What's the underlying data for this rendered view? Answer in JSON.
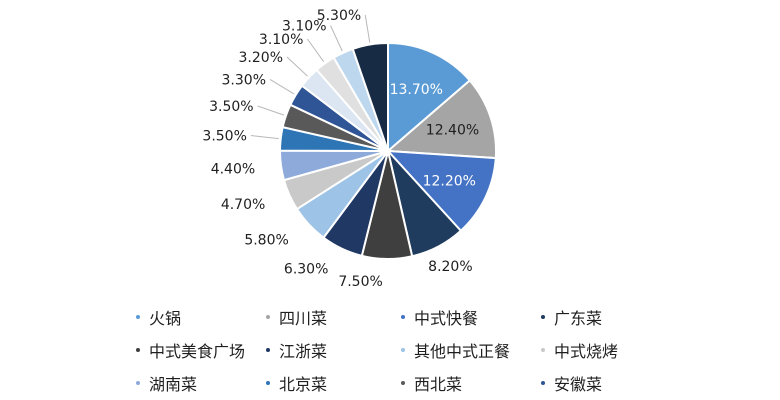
{
  "chart_data": {
    "type": "pie",
    "title": "",
    "legend_position": "bottom",
    "slices": [
      {
        "name": "火锅",
        "value": 13.7,
        "label": "13.70%",
        "color": "#5b9bd5"
      },
      {
        "name": "四川菜",
        "value": 12.4,
        "label": "12.40%",
        "color": "#a5a5a5"
      },
      {
        "name": "中式快餐",
        "value": 12.2,
        "label": "12.20%",
        "color": "#4472c4"
      },
      {
        "name": "广东菜",
        "value": 8.2,
        "label": "8.20%",
        "color": "#1f3b5e"
      },
      {
        "name": "中式美食广场",
        "value": 7.5,
        "label": "7.50%",
        "color": "#3f3f3f"
      },
      {
        "name": "江浙菜",
        "value": 6.3,
        "label": "6.30%",
        "color": "#203864"
      },
      {
        "name": "其他中式正餐",
        "value": 5.8,
        "label": "5.80%",
        "color": "#9dc3e6"
      },
      {
        "name": "中式烧烤",
        "value": 4.7,
        "label": "4.70%",
        "color": "#c9c9c9"
      },
      {
        "name": "湖南菜",
        "value": 4.4,
        "label": "4.40%",
        "color": "#8eaadb"
      },
      {
        "name": "北京菜",
        "value": 3.5,
        "label": "3.50%",
        "color": "#2e75b6"
      },
      {
        "name": "西北菜",
        "value": 3.5,
        "label": "3.50%",
        "color": "#595959"
      },
      {
        "name": "安徽菜",
        "value": 3.3,
        "label": "3.30%",
        "color": "#2f5597"
      },
      {
        "name": "",
        "value": 3.2,
        "label": "3.20%",
        "color": "#dce6f2"
      },
      {
        "name": "",
        "value": 3.1,
        "label": "3.10%",
        "color": "#e0e0e0"
      },
      {
        "name": "",
        "value": 3.1,
        "label": "3.10%",
        "color": "#bdd7ee"
      },
      {
        "name": "",
        "value": 5.3,
        "label": "5.30%",
        "color": "#172b45"
      }
    ]
  }
}
